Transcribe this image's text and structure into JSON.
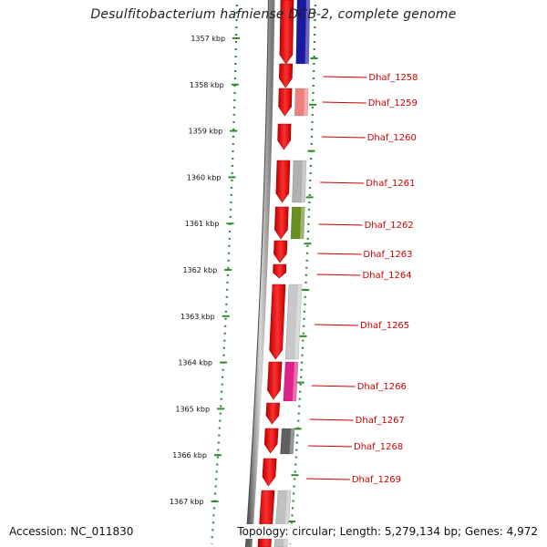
{
  "title": "Desulfitobacterium hafniense DCB-2, complete genome",
  "accession": "Accession: NC_011830",
  "topology": "Topology: circular; Length: 5,279,134 bp; Genes: 4,972",
  "colors": {
    "forward": "#ee1111",
    "backbone": "#8a8a8a",
    "tick": "#2e8b2e",
    "label": "#cc0000"
  },
  "scale_ticks": [
    "1357 kbp",
    "1358 kbp",
    "1359 kbp",
    "1360 kbp",
    "1361 kbp",
    "1362 kbp",
    "1363 kbp",
    "1364 kbp",
    "1365 kbp",
    "1366 kbp",
    "1367 kbp"
  ],
  "genes": [
    {
      "label": "",
      "shade": "#1a1aa0"
    },
    {
      "label": "Dhaf_1258",
      "shade": ""
    },
    {
      "label": "Dhaf_1259",
      "shade": "#f08080"
    },
    {
      "label": "Dhaf_1260",
      "shade": ""
    },
    {
      "label": "Dhaf_1261",
      "shade": "#b0b0b0"
    },
    {
      "label": "Dhaf_1262",
      "shade": "#6b8e23"
    },
    {
      "label": "Dhaf_1263",
      "shade": ""
    },
    {
      "label": "Dhaf_1264",
      "shade": ""
    },
    {
      "label": "Dhaf_1265",
      "shade": "#c8c8c8"
    },
    {
      "label": "Dhaf_1266",
      "shade": "#e0218a"
    },
    {
      "label": "Dhaf_1267",
      "shade": ""
    },
    {
      "label": "Dhaf_1268",
      "shade": "#606060"
    },
    {
      "label": "Dhaf_1269",
      "shade": ""
    },
    {
      "label": "",
      "shade": "#c0c0c0"
    }
  ]
}
